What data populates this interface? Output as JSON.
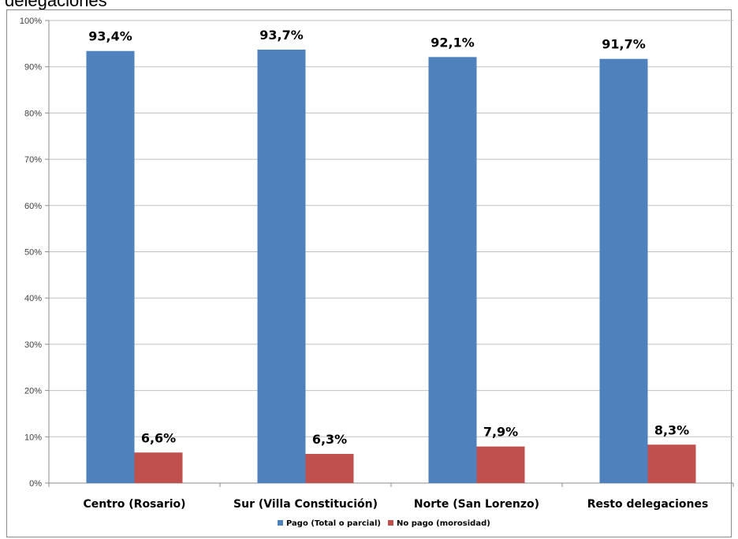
{
  "page": {
    "heading": "delegaciones"
  },
  "chart_data": {
    "type": "bar",
    "categories": [
      "Centro (Rosario)",
      "Sur (Villa Constitución)",
      "Norte (San Lorenzo)",
      "Resto delegaciones"
    ],
    "series": [
      {
        "name": "Pago (Total o parcial)",
        "values": [
          93.4,
          93.7,
          92.1,
          91.7
        ],
        "labels": [
          "93,4%",
          "93,7%",
          "92,1%",
          "91,7%"
        ],
        "color": "#4f81bd"
      },
      {
        "name": "No pago (morosidad)",
        "values": [
          6.6,
          6.3,
          7.9,
          8.3
        ],
        "labels": [
          "6,6%",
          "6,3%",
          "7,9%",
          "8,3%"
        ],
        "color": "#c0504d"
      }
    ],
    "ylim": [
      0,
      100
    ],
    "yticks": [
      "0%",
      "10%",
      "20%",
      "30%",
      "40%",
      "50%",
      "60%",
      "70%",
      "80%",
      "90%",
      "100%"
    ],
    "grid": true,
    "legend": "bottom"
  }
}
